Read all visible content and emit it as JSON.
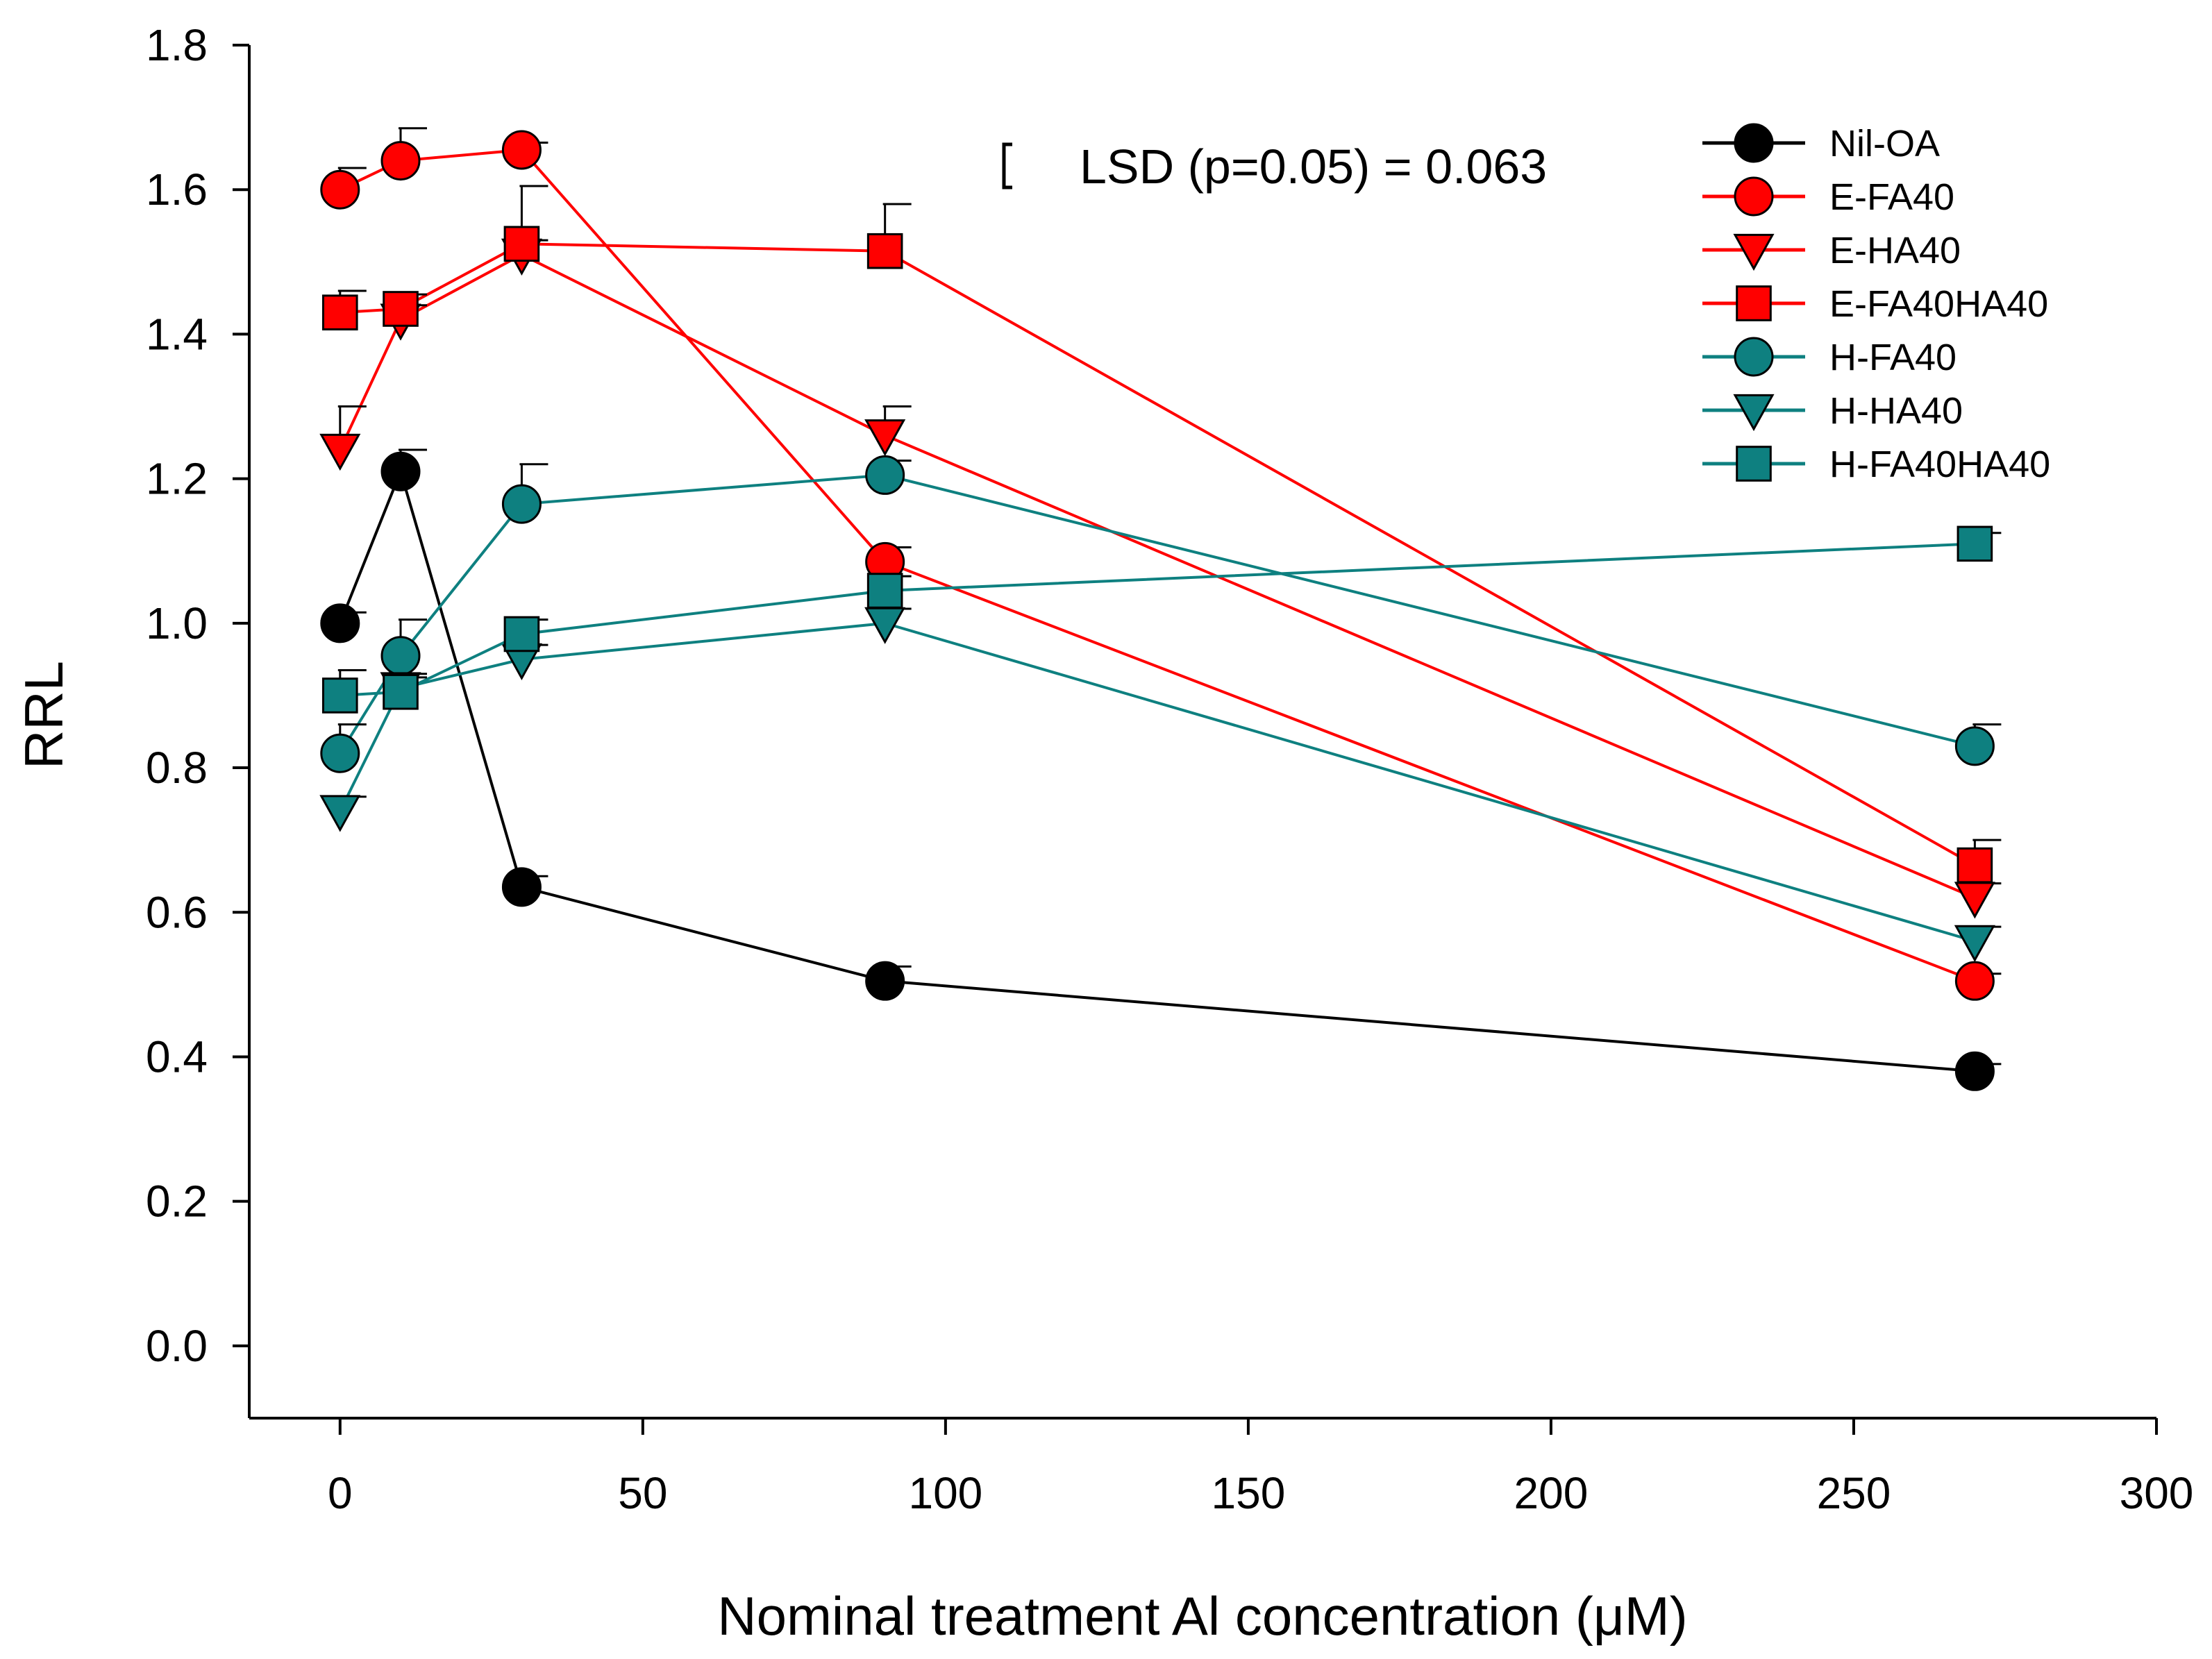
{
  "chart_data": {
    "type": "line",
    "title": "",
    "xlabel": "Nominal treatment Al concentration (μM)",
    "ylabel": "RRL",
    "xlim": [
      -15,
      300
    ],
    "ylim": [
      -0.1,
      1.8
    ],
    "x_ticks": [
      0,
      50,
      100,
      150,
      200,
      250,
      300
    ],
    "x_tick_labels": [
      "0",
      "50",
      "100",
      "150",
      "200",
      "250",
      "300"
    ],
    "y_ticks": [
      0.0,
      0.2,
      0.4,
      0.6,
      0.8,
      1.0,
      1.2,
      1.4,
      1.6,
      1.8
    ],
    "y_tick_labels": [
      "0.0",
      "0.2",
      "0.4",
      "0.6",
      "0.8",
      "1.0",
      "1.2",
      "1.4",
      "1.6",
      "1.8"
    ],
    "grid": false,
    "legend_position": "top-right",
    "annotation": {
      "text": "LSD (p=0.05) = 0.063",
      "lsd_value": 0.063
    },
    "x": [
      0,
      10,
      30,
      90,
      270
    ],
    "series": [
      {
        "name": "Nil-OA",
        "color": "#000000",
        "marker": "circle",
        "values": [
          1.0,
          1.21,
          0.635,
          0.505,
          0.38
        ],
        "errors": [
          0.015,
          0.03,
          0.015,
          0.02,
          0.01
        ]
      },
      {
        "name": "E-FA40",
        "color": "#ff0000",
        "marker": "circle",
        "values": [
          1.6,
          1.64,
          1.655,
          1.085,
          0.505
        ],
        "errors": [
          0.03,
          0.045,
          0.01,
          0.02,
          0.01
        ]
      },
      {
        "name": "E-HA40",
        "color": "#ff0000",
        "marker": "triangle-down",
        "values": [
          1.24,
          1.42,
          1.51,
          1.26,
          0.62
        ],
        "errors": [
          0.06,
          0.02,
          0.02,
          0.04,
          0.02
        ]
      },
      {
        "name": "E-FA40HA40",
        "color": "#ff0000",
        "marker": "square",
        "values": [
          1.43,
          1.435,
          1.525,
          1.515,
          0.665
        ],
        "errors": [
          0.03,
          0.02,
          0.08,
          0.065,
          0.035
        ]
      },
      {
        "name": "H-FA40",
        "color": "#0e8080",
        "marker": "circle",
        "values": [
          0.82,
          0.955,
          1.165,
          1.205,
          0.83
        ],
        "errors": [
          0.04,
          0.05,
          0.055,
          0.02,
          0.03
        ]
      },
      {
        "name": "H-HA40",
        "color": "#0e8080",
        "marker": "triangle-down",
        "values": [
          0.74,
          0.91,
          0.95,
          1.0,
          0.56
        ],
        "errors": [
          0.02,
          0.02,
          0.02,
          0.02,
          0.02
        ]
      },
      {
        "name": "H-FA40HA40",
        "color": "#0e8080",
        "marker": "square",
        "values": [
          0.9,
          0.905,
          0.985,
          1.045,
          1.11
        ],
        "errors": [
          0.035,
          0.02,
          0.02,
          0.02,
          0.015
        ]
      }
    ]
  }
}
